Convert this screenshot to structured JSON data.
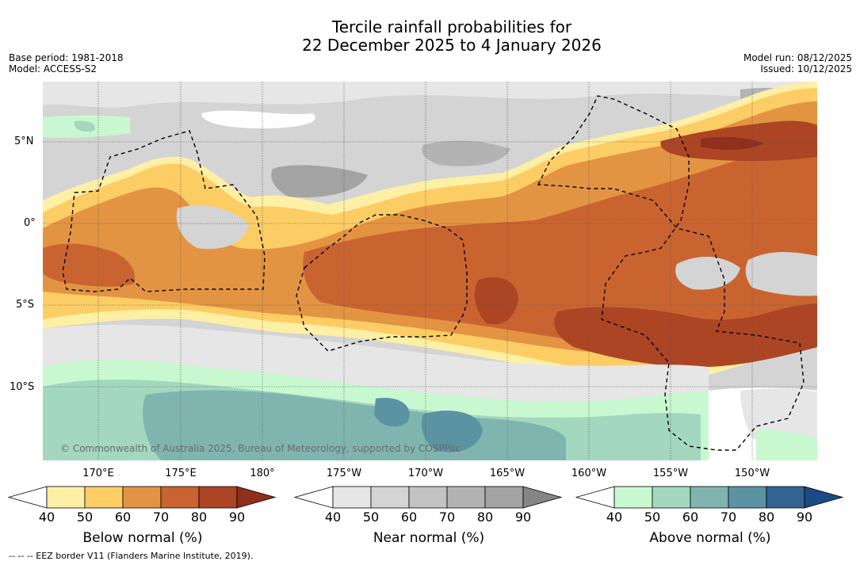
{
  "title": {
    "line1": "Tercile rainfall probabilities for",
    "line2": "22 December 2025 to 4 January 2026"
  },
  "meta": {
    "base_period": "Base period: 1981-2018",
    "model": "Model: ACCESS-S2",
    "model_run": "Model run: 08/12/2025",
    "issued": "Issued: 10/12/2025"
  },
  "map": {
    "lat_labels": [
      "5°N",
      "0°",
      "5°S",
      "10°S"
    ],
    "lon_labels": [
      "170°E",
      "175°E",
      "180°",
      "175°W",
      "170°W",
      "165°W",
      "160°W",
      "155°W",
      "150°W"
    ],
    "copyright": "© Commonwealth of Australia 2025, Bureau of Meteorology, supported by COSPPac"
  },
  "colorbars": [
    {
      "label": "Below normal (%)",
      "ticks": [
        "40",
        "50",
        "60",
        "70",
        "80",
        "90"
      ],
      "colors": [
        "#ffffff",
        "#fdefa4",
        "#fdcd65",
        "#e39442",
        "#c96431",
        "#ab4524",
        "#8f2f1c"
      ]
    },
    {
      "label": "Near normal (%)",
      "ticks": [
        "40",
        "50",
        "60",
        "70",
        "80",
        "90"
      ],
      "colors": [
        "#ffffff",
        "#e6e6e6",
        "#d4d4d4",
        "#c3c3c3",
        "#b3b3b3",
        "#a3a3a3",
        "#858585"
      ]
    },
    {
      "label": "Above normal (%)",
      "ticks": [
        "40",
        "50",
        "60",
        "70",
        "80",
        "90"
      ],
      "colors": [
        "#ffffff",
        "#c8f8cf",
        "#a3d8bf",
        "#80b5af",
        "#5b93a3",
        "#336391",
        "#1c4a84"
      ]
    }
  ],
  "footer": "--  --  -- EEZ border V11 (Flanders Marine Institute, 2019)."
}
